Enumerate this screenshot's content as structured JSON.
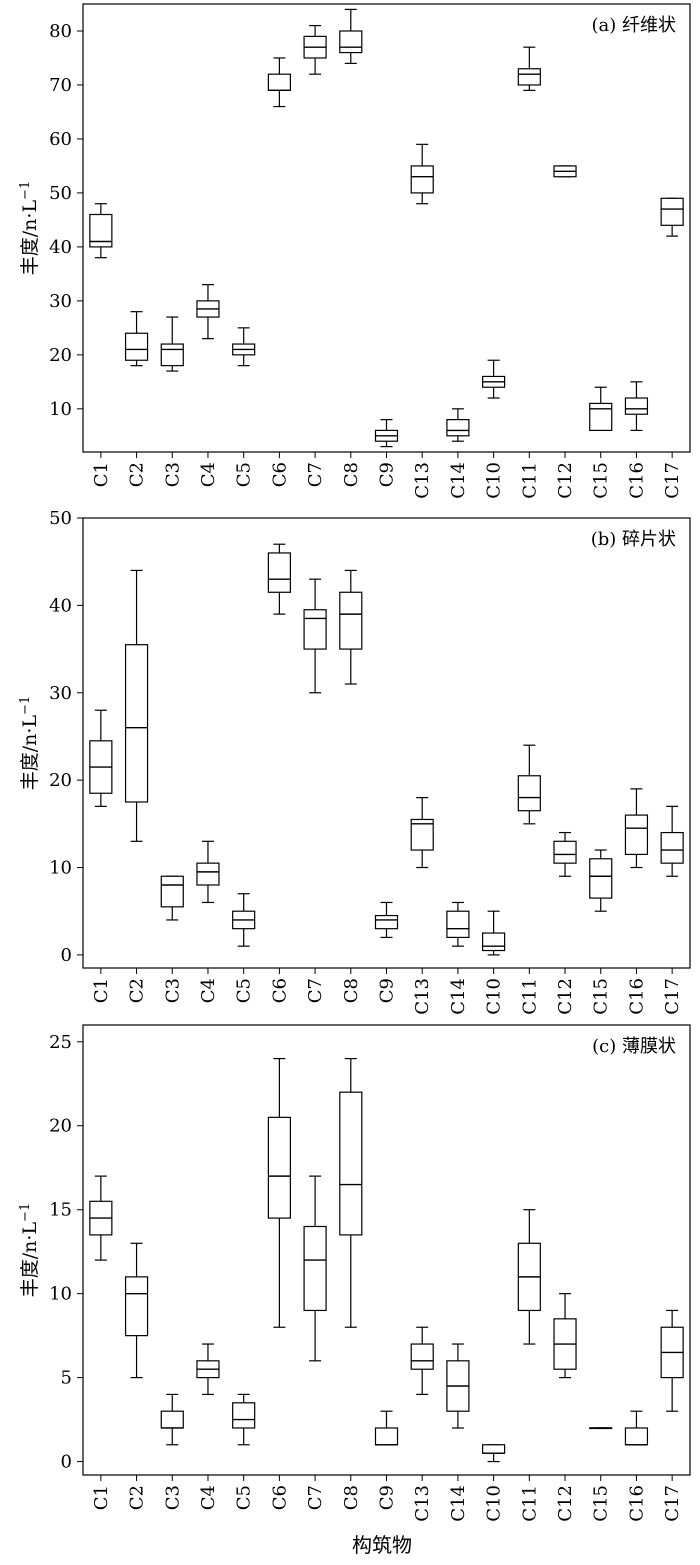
{
  "chart_data": [
    {
      "type": "box",
      "panel_label": "(a) 纤维状",
      "ylabel": "丰度/n·L",
      "ylabel_sup": "−1",
      "ylim": [
        2,
        85
      ],
      "yticks": [
        10,
        20,
        30,
        40,
        50,
        60,
        70,
        80
      ],
      "categories": [
        "C1",
        "C2",
        "C3",
        "C4",
        "C5",
        "C6",
        "C7",
        "C8",
        "C9",
        "C13",
        "C14",
        "C10",
        "C11",
        "C12",
        "C15",
        "C16",
        "C17"
      ],
      "boxes": [
        {
          "min": 38,
          "q1": 40,
          "median": 41,
          "q3": 46,
          "max": 48
        },
        {
          "min": 18,
          "q1": 19,
          "median": 21,
          "q3": 24,
          "max": 28
        },
        {
          "min": 17,
          "q1": 18,
          "median": 21,
          "q3": 22,
          "max": 27
        },
        {
          "min": 23,
          "q1": 27,
          "median": 28.5,
          "q3": 30,
          "max": 33
        },
        {
          "min": 18,
          "q1": 20,
          "median": 21,
          "q3": 22,
          "max": 25
        },
        {
          "min": 66,
          "q1": 69,
          "median": 69,
          "q3": 72,
          "max": 75
        },
        {
          "min": 72,
          "q1": 75,
          "median": 77,
          "q3": 79,
          "max": 81
        },
        {
          "min": 74,
          "q1": 76,
          "median": 77,
          "q3": 80,
          "max": 84
        },
        {
          "min": 3,
          "q1": 4,
          "median": 5,
          "q3": 6,
          "max": 8
        },
        {
          "min": 48,
          "q1": 50,
          "median": 53,
          "q3": 55,
          "max": 59
        },
        {
          "min": 4,
          "q1": 5,
          "median": 6,
          "q3": 8,
          "max": 10
        },
        {
          "min": 12,
          "q1": 14,
          "median": 15,
          "q3": 16,
          "max": 19
        },
        {
          "min": 69,
          "q1": 70,
          "median": 72,
          "q3": 73,
          "max": 77
        },
        {
          "min": 53,
          "q1": 53,
          "median": 54,
          "q3": 55,
          "max": 55
        },
        {
          "min": 6,
          "q1": 6,
          "median": 10,
          "q3": 11,
          "max": 14
        },
        {
          "min": 6,
          "q1": 9,
          "median": 10,
          "q3": 12,
          "max": 15
        },
        {
          "min": 42,
          "q1": 44,
          "median": 47,
          "q3": 49,
          "max": 49
        }
      ]
    },
    {
      "type": "box",
      "panel_label": "(b) 碎片状",
      "ylabel": "丰度/n·L",
      "ylabel_sup": "−1",
      "ylim": [
        -1.5,
        50
      ],
      "yticks": [
        0,
        10,
        20,
        30,
        40,
        50
      ],
      "categories": [
        "C1",
        "C2",
        "C3",
        "C4",
        "C5",
        "C6",
        "C7",
        "C8",
        "C9",
        "C13",
        "C14",
        "C10",
        "C11",
        "C12",
        "C15",
        "C16",
        "C17"
      ],
      "boxes": [
        {
          "min": 17,
          "q1": 18.5,
          "median": 21.5,
          "q3": 24.5,
          "max": 28
        },
        {
          "min": 13,
          "q1": 17.5,
          "median": 26,
          "q3": 35.5,
          "max": 44
        },
        {
          "min": 4,
          "q1": 5.5,
          "median": 8,
          "q3": 9,
          "max": 9
        },
        {
          "min": 6,
          "q1": 8,
          "median": 9.5,
          "q3": 10.5,
          "max": 13
        },
        {
          "min": 1,
          "q1": 3,
          "median": 4,
          "q3": 5,
          "max": 7
        },
        {
          "min": 39,
          "q1": 41.5,
          "median": 43,
          "q3": 46,
          "max": 47
        },
        {
          "min": 30,
          "q1": 35,
          "median": 38.5,
          "q3": 39.5,
          "max": 43
        },
        {
          "min": 31,
          "q1": 35,
          "median": 39,
          "q3": 41.5,
          "max": 44
        },
        {
          "min": 2,
          "q1": 3,
          "median": 4,
          "q3": 4.5,
          "max": 6
        },
        {
          "min": 10,
          "q1": 12,
          "median": 15,
          "q3": 15.5,
          "max": 18
        },
        {
          "min": 1,
          "q1": 2,
          "median": 3,
          "q3": 5,
          "max": 6
        },
        {
          "min": 0,
          "q1": 0.5,
          "median": 1,
          "q3": 2.5,
          "max": 5
        },
        {
          "min": 15,
          "q1": 16.5,
          "median": 18,
          "q3": 20.5,
          "max": 24
        },
        {
          "min": 9,
          "q1": 10.5,
          "median": 11.5,
          "q3": 13,
          "max": 14
        },
        {
          "min": 5,
          "q1": 6.5,
          "median": 9,
          "q3": 11,
          "max": 12
        },
        {
          "min": 10,
          "q1": 11.5,
          "median": 14.5,
          "q3": 16,
          "max": 19
        },
        {
          "min": 9,
          "q1": 10.5,
          "median": 12,
          "q3": 14,
          "max": 17
        }
      ]
    },
    {
      "type": "box",
      "panel_label": "(c) 薄膜状",
      "ylabel": "丰度/n·L",
      "ylabel_sup": "−1",
      "ylim": [
        -0.8,
        26
      ],
      "yticks": [
        0,
        5,
        10,
        15,
        20,
        25
      ],
      "categories": [
        "C1",
        "C2",
        "C3",
        "C4",
        "C5",
        "C6",
        "C7",
        "C8",
        "C9",
        "C13",
        "C14",
        "C10",
        "C11",
        "C12",
        "C15",
        "C16",
        "C17"
      ],
      "boxes": [
        {
          "min": 12,
          "q1": 13.5,
          "median": 14.5,
          "q3": 15.5,
          "max": 17
        },
        {
          "min": 5,
          "q1": 7.5,
          "median": 10,
          "q3": 11,
          "max": 13
        },
        {
          "min": 1,
          "q1": 2,
          "median": 2,
          "q3": 3,
          "max": 4
        },
        {
          "min": 4,
          "q1": 5,
          "median": 5.5,
          "q3": 6,
          "max": 7
        },
        {
          "min": 1,
          "q1": 2,
          "median": 2.5,
          "q3": 3.5,
          "max": 4
        },
        {
          "min": 8,
          "q1": 14.5,
          "median": 17,
          "q3": 20.5,
          "max": 24
        },
        {
          "min": 6,
          "q1": 9,
          "median": 12,
          "q3": 14,
          "max": 17
        },
        {
          "min": 8,
          "q1": 13.5,
          "median": 16.5,
          "q3": 22,
          "max": 24
        },
        {
          "min": 1,
          "q1": 1,
          "median": 1,
          "q3": 2,
          "max": 3
        },
        {
          "min": 4,
          "q1": 5.5,
          "median": 6,
          "q3": 7,
          "max": 8
        },
        {
          "min": 2,
          "q1": 3,
          "median": 4.5,
          "q3": 6,
          "max": 7
        },
        {
          "min": 0,
          "q1": 0.5,
          "median": 0.5,
          "q3": 1,
          "max": 1
        },
        {
          "min": 7,
          "q1": 9,
          "median": 11,
          "q3": 13,
          "max": 15
        },
        {
          "min": 5,
          "q1": 5.5,
          "median": 7,
          "q3": 8.5,
          "max": 10
        },
        {
          "min": 2,
          "q1": 2,
          "median": 2,
          "q3": 2,
          "max": 2
        },
        {
          "min": 1,
          "q1": 1,
          "median": 1,
          "q3": 2,
          "max": 3
        },
        {
          "min": 3,
          "q1": 5,
          "median": 6.5,
          "q3": 8,
          "max": 9
        }
      ]
    }
  ],
  "xlabel": "构筑物"
}
